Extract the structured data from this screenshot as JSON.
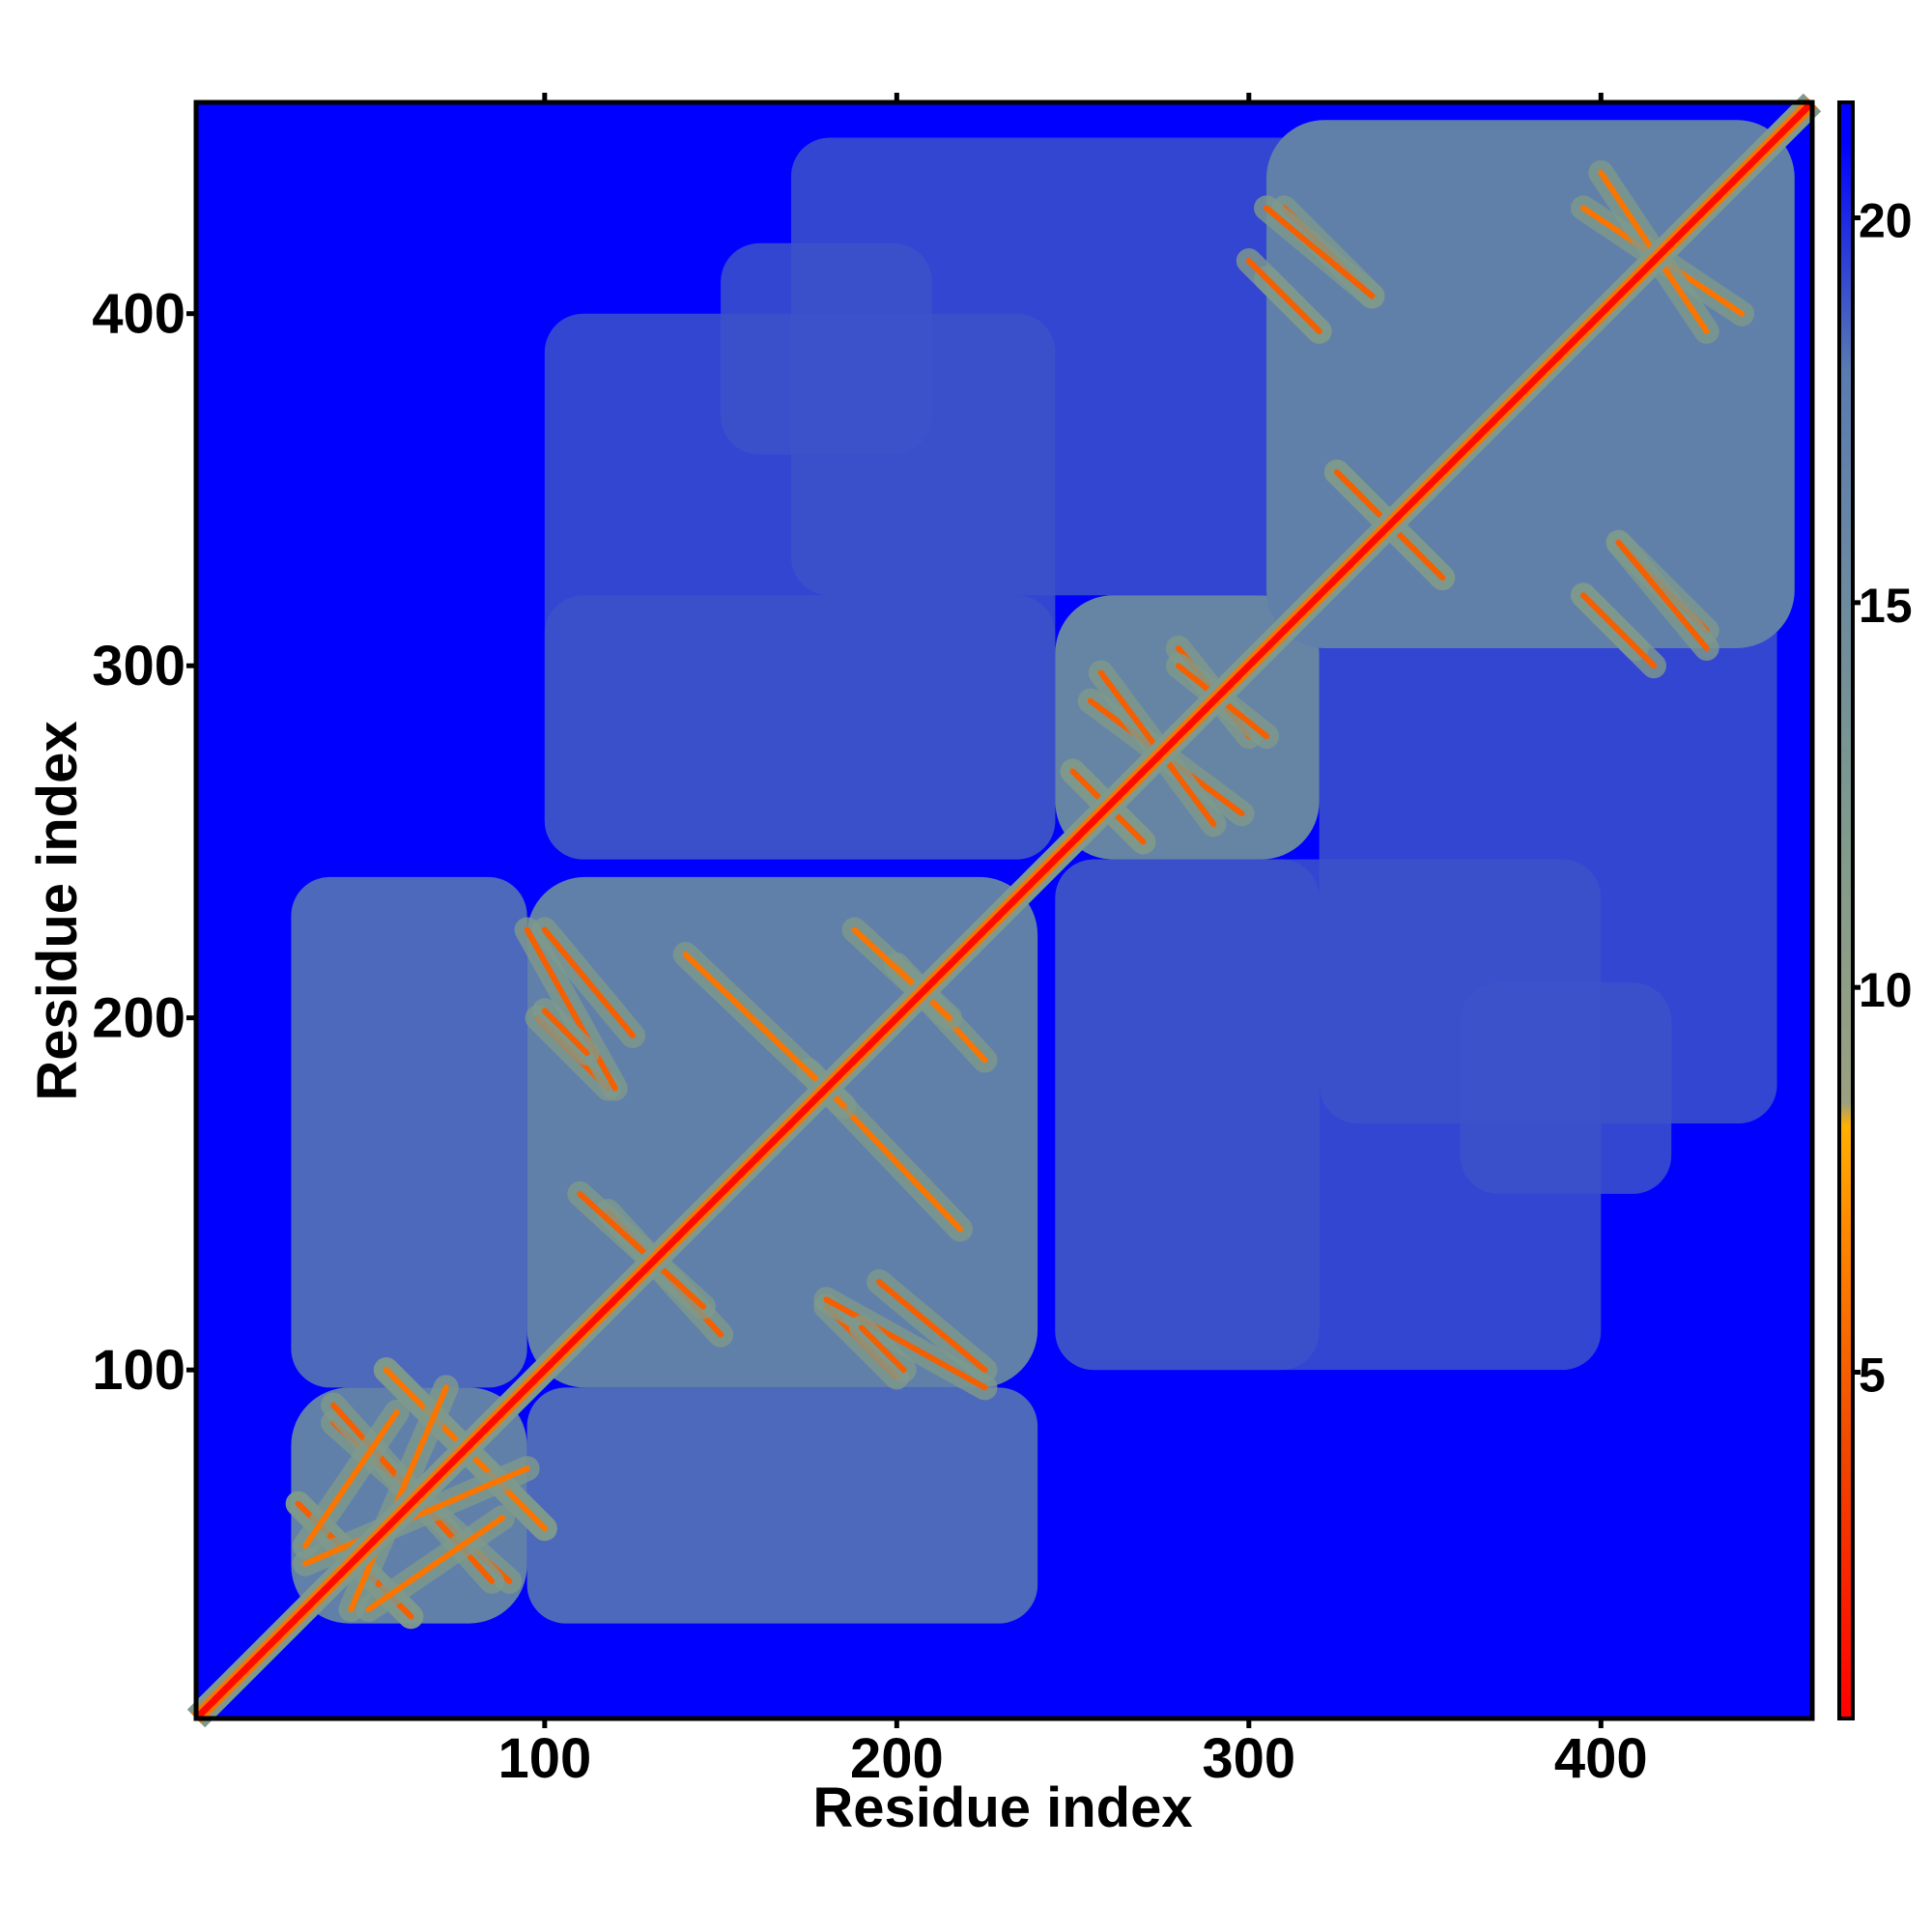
{
  "chart_data": {
    "type": "heatmap",
    "title": "",
    "xlabel": "Residue index",
    "ylabel": "Residue index",
    "xlim": [
      1,
      460
    ],
    "ylim": [
      1,
      460
    ],
    "x_ticks": [
      100,
      200,
      300,
      400
    ],
    "y_ticks": [
      100,
      200,
      300,
      400
    ],
    "x_tick_labels": [
      "100",
      "200",
      "300",
      "400"
    ],
    "y_tick_labels": [
      "100",
      "200",
      "300",
      "400"
    ],
    "colorbar": {
      "range": [
        0.5,
        21.5
      ],
      "ticks": [
        5,
        10,
        15,
        20
      ],
      "tick_labels": [
        "5",
        "10",
        "15",
        "20"
      ],
      "stops": [
        {
          "value": 0.5,
          "color": "#ff0000"
        },
        {
          "value": 4.0,
          "color": "#f04800"
        },
        {
          "value": 7.0,
          "color": "#ff8c00"
        },
        {
          "value": 8.2,
          "color": "#ffb000"
        },
        {
          "value": 8.5,
          "color": "#9aa080"
        },
        {
          "value": 12.0,
          "color": "#7f9a8c"
        },
        {
          "value": 18.0,
          "color": "#5a7bb0"
        },
        {
          "value": 21.0,
          "color": "#0000ff"
        }
      ]
    },
    "background_value": 21,
    "diagonal_value": 1,
    "domains": [
      {
        "start": 28,
        "end": 95,
        "contact_value": 17
      },
      {
        "start": 95,
        "end": 240,
        "contact_value": 17
      },
      {
        "start": 245,
        "end": 320,
        "contact_value": 16
      },
      {
        "start": 305,
        "end": 455,
        "contact_value": 17
      }
    ],
    "inter_domain_blocks": [
      {
        "x": [
          95,
          240
        ],
        "y": [
          28,
          95
        ],
        "value": 18
      },
      {
        "x": [
          245,
          320
        ],
        "y": [
          100,
          245
        ],
        "value": 19
      },
      {
        "x": [
          320,
          450
        ],
        "y": [
          170,
          320
        ],
        "value": 19
      },
      {
        "x": [
          100,
          245
        ],
        "y": [
          245,
          400
        ],
        "value": 19
      },
      {
        "x": [
          150,
          210
        ],
        "y": [
          360,
          420
        ],
        "value": 19
      }
    ],
    "contact_lines": [
      {
        "x1": 30,
        "y1": 62,
        "x2": 62,
        "y2": 30,
        "value": 5
      },
      {
        "x1": 40,
        "y1": 85,
        "x2": 90,
        "y2": 40,
        "value": 5
      },
      {
        "x1": 55,
        "y1": 100,
        "x2": 100,
        "y2": 55,
        "value": 6
      },
      {
        "x1": 32,
        "y1": 45,
        "x2": 95,
        "y2": 72,
        "value": 6
      },
      {
        "x1": 50,
        "y1": 32,
        "x2": 88,
        "y2": 58,
        "value": 6
      },
      {
        "x1": 100,
        "y1": 225,
        "x2": 125,
        "y2": 195,
        "value": 5
      },
      {
        "x1": 98,
        "y1": 200,
        "x2": 118,
        "y2": 180,
        "value": 5
      },
      {
        "x1": 175,
        "y1": 185,
        "x2": 218,
        "y2": 140,
        "value": 6
      },
      {
        "x1": 118,
        "y1": 145,
        "x2": 150,
        "y2": 110,
        "value": 5
      },
      {
        "x1": 180,
        "y1": 120,
        "x2": 225,
        "y2": 95,
        "value": 5
      },
      {
        "x1": 190,
        "y1": 112,
        "x2": 202,
        "y2": 100,
        "value": 5
      },
      {
        "x1": 200,
        "y1": 215,
        "x2": 225,
        "y2": 188,
        "value": 6
      },
      {
        "x1": 250,
        "y1": 270,
        "x2": 270,
        "y2": 250,
        "value": 5
      },
      {
        "x1": 255,
        "y1": 290,
        "x2": 298,
        "y2": 258,
        "value": 5
      },
      {
        "x1": 280,
        "y1": 305,
        "x2": 300,
        "y2": 280,
        "value": 5
      },
      {
        "x1": 305,
        "y1": 410,
        "x2": 320,
        "y2": 395,
        "value": 5
      },
      {
        "x1": 310,
        "y1": 430,
        "x2": 335,
        "y2": 405,
        "value": 5
      },
      {
        "x1": 325,
        "y1": 355,
        "x2": 355,
        "y2": 325,
        "value": 5
      },
      {
        "x1": 405,
        "y1": 335,
        "x2": 430,
        "y2": 305,
        "value": 5
      },
      {
        "x1": 395,
        "y1": 320,
        "x2": 415,
        "y2": 300,
        "value": 5
      },
      {
        "x1": 395,
        "y1": 430,
        "x2": 440,
        "y2": 400,
        "value": 6
      }
    ]
  }
}
